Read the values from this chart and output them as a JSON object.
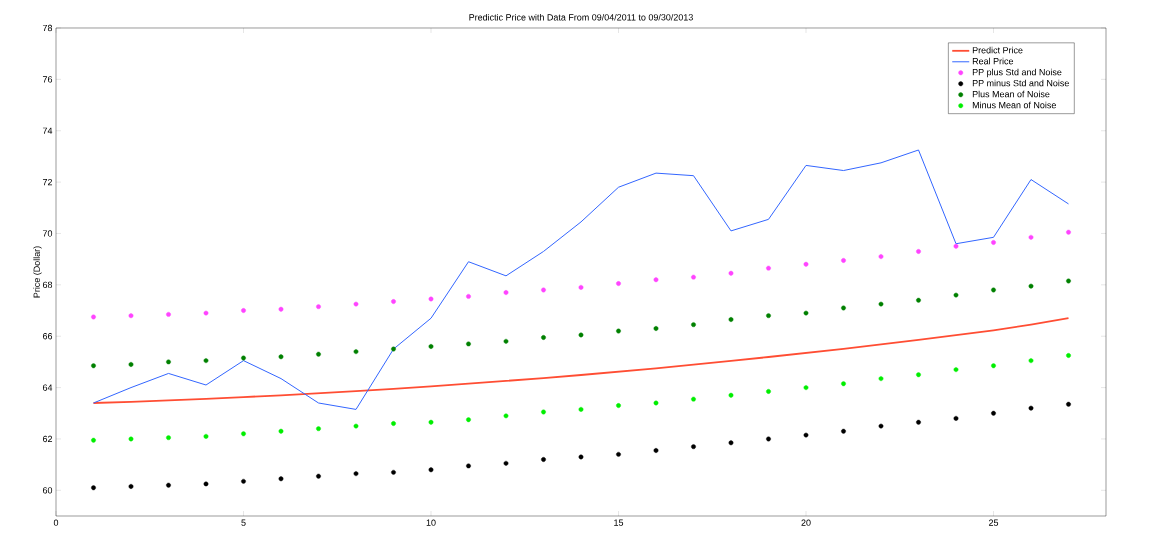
{
  "chart_data": {
    "type": "line",
    "title": "Predictic Price with Data From 09/04/2011 to 09/30/2013",
    "ylabel": "Price (Dollar)",
    "x": [
      1,
      2,
      3,
      4,
      5,
      6,
      7,
      8,
      9,
      10,
      11,
      12,
      13,
      14,
      15,
      16,
      17,
      18,
      19,
      20,
      21,
      22,
      23,
      24,
      25,
      26,
      27
    ],
    "xlim": [
      0,
      28
    ],
    "ylim": [
      59,
      78
    ],
    "xticks": [
      0,
      5,
      10,
      15,
      20,
      25
    ],
    "yticks": [
      60,
      62,
      64,
      66,
      68,
      70,
      72,
      74,
      76,
      78
    ],
    "legend": "top right",
    "series": [
      {
        "name": "Predict Price",
        "color": "#ff4d33",
        "values": [
          63.4,
          63.44,
          63.5,
          63.56,
          63.63,
          63.7,
          63.78,
          63.86,
          63.95,
          64.05,
          64.15,
          64.26,
          64.37,
          64.49,
          64.62,
          64.75,
          64.89,
          65.04,
          65.19,
          65.35,
          65.51,
          65.68,
          65.86,
          66.04,
          66.23,
          66.45,
          66.7
        ]
      },
      {
        "name": "Real Price",
        "color": "#3366ff",
        "values": [
          63.4,
          64.0,
          64.55,
          64.1,
          65.05,
          64.35,
          63.4,
          63.15,
          65.5,
          66.7,
          68.9,
          68.35,
          69.3,
          70.45,
          71.8,
          72.35,
          72.25,
          70.1,
          70.55,
          72.65,
          72.45,
          72.75,
          73.25,
          69.6,
          69.85,
          72.1,
          71.15
        ]
      },
      {
        "name": "PP plus Std and Noise",
        "type": "scatter",
        "marker": "circle",
        "color": "#ff44ff",
        "values": [
          66.75,
          66.8,
          66.85,
          66.9,
          67.0,
          67.05,
          67.15,
          67.25,
          67.35,
          67.45,
          67.55,
          67.7,
          67.8,
          67.9,
          68.05,
          68.2,
          68.3,
          68.45,
          68.65,
          68.8,
          68.95,
          69.1,
          69.3,
          69.5,
          69.65,
          69.85,
          70.05
        ]
      },
      {
        "name": "PP minus Std and Noise",
        "type": "scatter",
        "marker": "circle",
        "color": "#000000",
        "values": [
          60.1,
          60.15,
          60.2,
          60.25,
          60.35,
          60.45,
          60.55,
          60.65,
          60.7,
          60.8,
          60.95,
          61.05,
          61.2,
          61.3,
          61.4,
          61.55,
          61.7,
          61.85,
          62.0,
          62.15,
          62.3,
          62.5,
          62.65,
          62.8,
          63.0,
          63.2,
          63.35
        ]
      },
      {
        "name": "Plus Mean of Noise",
        "type": "scatter",
        "marker": "circle",
        "color": "#008000",
        "values": [
          64.85,
          64.9,
          65.0,
          65.05,
          65.15,
          65.2,
          65.3,
          65.4,
          65.5,
          65.6,
          65.7,
          65.8,
          65.95,
          66.05,
          66.2,
          66.3,
          66.45,
          66.65,
          66.8,
          66.9,
          67.1,
          67.25,
          67.4,
          67.6,
          67.8,
          67.95,
          68.15
        ]
      },
      {
        "name": "Minus Mean of Noise",
        "type": "scatter",
        "marker": "circle",
        "color": "#00ee00",
        "values": [
          61.95,
          62.0,
          62.05,
          62.1,
          62.2,
          62.3,
          62.4,
          62.5,
          62.6,
          62.65,
          62.75,
          62.9,
          63.05,
          63.15,
          63.3,
          63.4,
          63.55,
          63.7,
          63.85,
          64.0,
          64.15,
          64.35,
          64.5,
          64.7,
          64.85,
          65.05,
          65.25
        ]
      }
    ]
  }
}
